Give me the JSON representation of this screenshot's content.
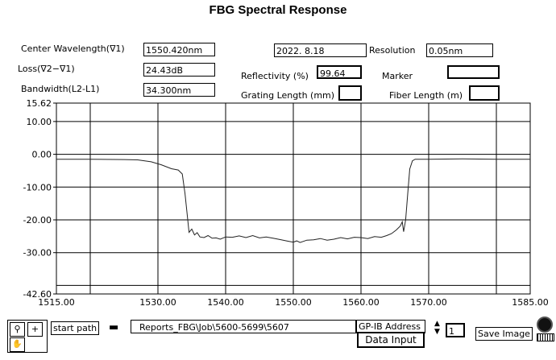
{
  "title": "FBG Spectral Response",
  "fields": {
    "center_wavelength_label": "Center Wavelength(∇1)",
    "center_wavelength": "1550.420nm",
    "loss_label": "Loss(∇2−∇1)",
    "loss": "24.43dB",
    "bandwidth_label": "Bandwidth(L2-L1)",
    "bandwidth": "34.300nm",
    "date": "2022. 8.18",
    "resolution_label": "Resolution",
    "resolution": "0.05nm",
    "reflectivity_label": "Reflectivity (%)",
    "reflectivity": "99.64",
    "marker_label": "Marker",
    "marker": "",
    "grating_length_label": "Grating Length (mm)",
    "grating_length": "",
    "fiber_length_label": "Fiber Length (m)",
    "fiber_length": ""
  },
  "toolbar": {
    "start_path_label": "start path",
    "path_value": "Reports_FBG\\Job\\5600-5699\\5607",
    "gpib_label": "GP-IB Address",
    "data_input_label": "Data Input",
    "gpib_value": "1",
    "save_image_label": "Save Image"
  },
  "chart_data": {
    "type": "line",
    "xlim": [
      1515,
      1585
    ],
    "ylim": [
      -42.6,
      15.62
    ],
    "x_ticks": [
      "1515.00",
      "1530.00",
      "1540.00",
      "1550.00",
      "1560.00",
      "1570.00",
      "1585.00"
    ],
    "y_ticks": [
      "15.62",
      "10.00",
      "0.00",
      "-10.00",
      "-20.00",
      "-30.00",
      "-42.60"
    ],
    "grid": true,
    "series": [
      {
        "x": [
          1515,
          1520,
          1525,
          1527,
          1529,
          1530.5,
          1532,
          1533,
          1533.6,
          1534,
          1534.4,
          1534.6,
          1535,
          1535.4,
          1535.8,
          1536.2,
          1536.8,
          1537.4,
          1538,
          1538.6,
          1539.2,
          1540,
          1541,
          1542,
          1543,
          1544,
          1545,
          1546,
          1547,
          1548,
          1549,
          1550,
          1550.5,
          1551,
          1552,
          1553,
          1554,
          1555,
          1556,
          1557,
          1558,
          1559,
          1560,
          1561,
          1562,
          1563,
          1563.8,
          1564.5,
          1565.2,
          1565.8,
          1566.1,
          1566.3,
          1566.6,
          1566.9,
          1567.2,
          1567.6,
          1568,
          1570,
          1575,
          1580,
          1585
        ],
        "y": [
          -1.5,
          -1.5,
          -1.6,
          -1.7,
          -2.3,
          -3.2,
          -4.4,
          -4.8,
          -6,
          -12,
          -20,
          -23.8,
          -22.8,
          -24.6,
          -23.9,
          -25.2,
          -25.4,
          -24.8,
          -25.6,
          -25.5,
          -25.9,
          -25.2,
          -25.3,
          -24.9,
          -25.4,
          -24.8,
          -25.5,
          -25.2,
          -25.6,
          -26,
          -26.4,
          -26.8,
          -26.4,
          -26.9,
          -26.2,
          -26.1,
          -25.7,
          -26.2,
          -25.9,
          -25.4,
          -25.8,
          -25.3,
          -25.4,
          -25.7,
          -25.1,
          -25.3,
          -24.8,
          -24.2,
          -23.1,
          -21.9,
          -20.6,
          -23.6,
          -20,
          -12,
          -4.5,
          -2,
          -1.5,
          -1.5,
          -1.4,
          -1.5,
          -1.5
        ]
      }
    ]
  }
}
